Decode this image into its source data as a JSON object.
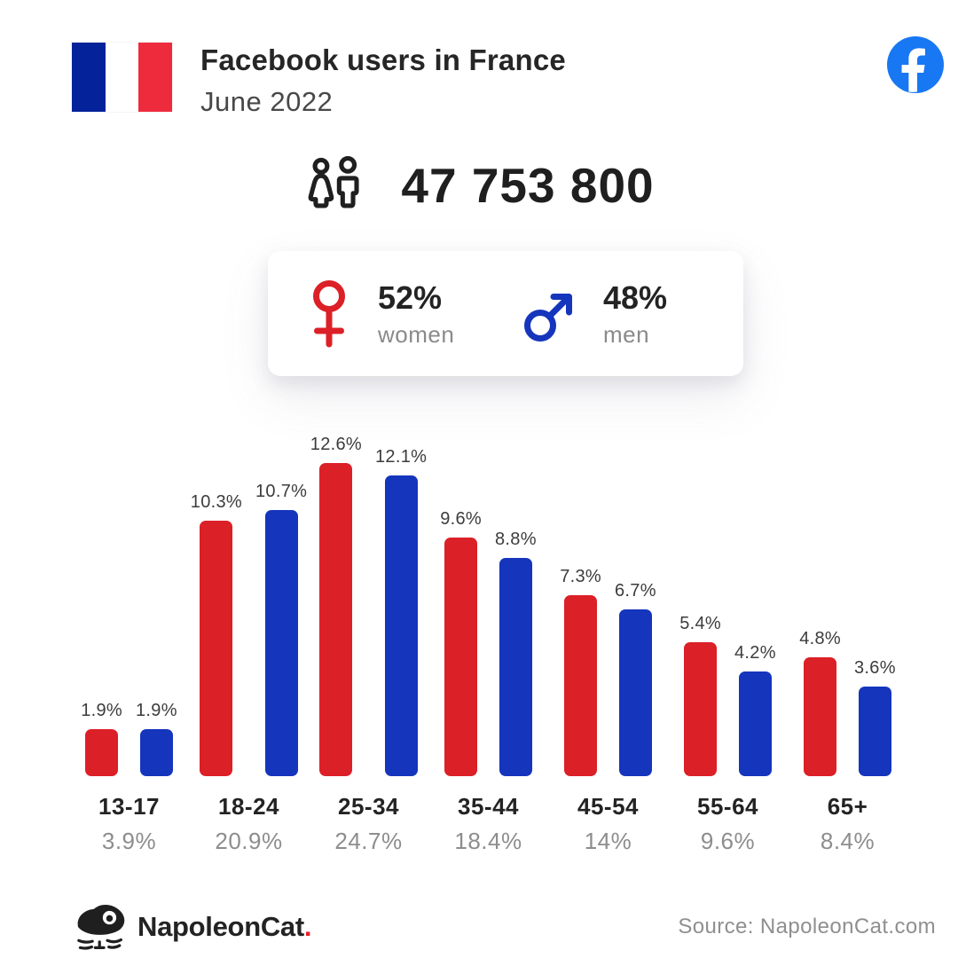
{
  "header": {
    "title": "Facebook users in France",
    "subtitle": "June 2022"
  },
  "total": {
    "value": "47 753 800"
  },
  "gender_card": {
    "women_pct": "52%",
    "women_label": "women",
    "men_pct": "48%",
    "men_label": "men"
  },
  "chart_data": {
    "type": "bar",
    "categories": [
      "13-17",
      "18-24",
      "25-34",
      "35-44",
      "45-54",
      "55-64",
      "65+"
    ],
    "series": [
      {
        "name": "women",
        "color": "#DC2027",
        "values": [
          1.9,
          10.3,
          12.6,
          9.6,
          7.3,
          5.4,
          4.8
        ],
        "labels": [
          "1.9%",
          "10.3%",
          "12.6%",
          "9.6%",
          "7.3%",
          "5.4%",
          "4.8%"
        ]
      },
      {
        "name": "men",
        "color": "#1535BC",
        "values": [
          1.9,
          10.7,
          12.1,
          8.8,
          6.7,
          4.2,
          3.6
        ],
        "labels": [
          "1.9%",
          "10.7%",
          "12.1%",
          "8.8%",
          "6.7%",
          "4.2%",
          "3.6%"
        ]
      }
    ],
    "group_totals": [
      "3.9%",
      "20.9%",
      "24.7%",
      "18.4%",
      "14%",
      "9.6%",
      "8.4%"
    ],
    "unit": "%",
    "ylim": [
      0,
      13
    ],
    "grid": false,
    "legend": "none (gender card above serves as legend)"
  },
  "colors": {
    "bar_women_red": "#DC2027",
    "bar_men_blue": "#1535BC",
    "facebook_blue": "#1877F2",
    "flag_blue": "#04239A",
    "flag_white": "#FFFFFF",
    "flag_red": "#EE2B3C",
    "text_dark": "#262626",
    "text_gray": "#8d8d8d",
    "brand_dot_red": "#E8212A"
  },
  "footer": {
    "brand": "NapoleonCat",
    "brand_dot": ".",
    "source": "Source: NapoleonCat.com"
  }
}
